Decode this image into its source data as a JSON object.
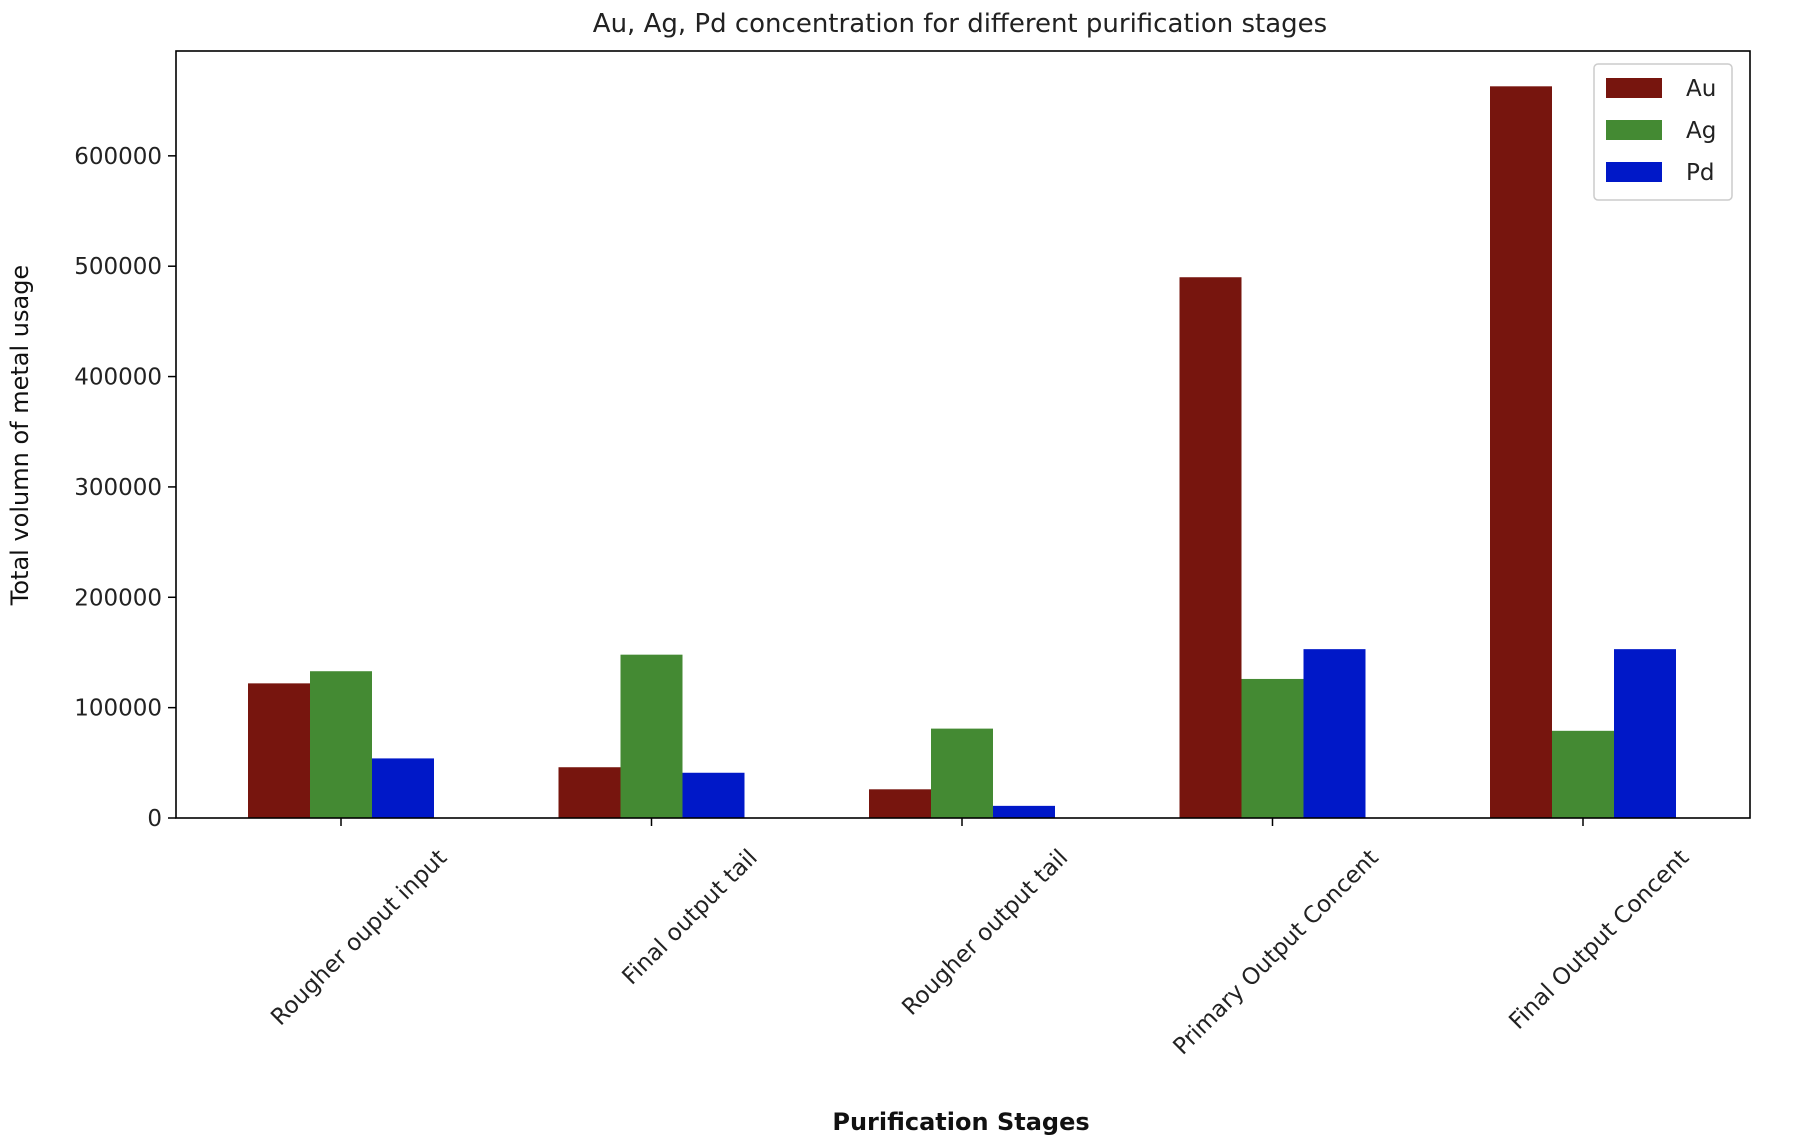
{
  "chart_data": {
    "type": "bar",
    "title": "Au, Ag, Pd concentration for different purification stages",
    "xlabel": "Purification Stages",
    "ylabel": "Total volumn of metal usage",
    "categories": [
      "Rougher ouput input",
      "Final output tail",
      "Rougher output tail",
      "Primary Output Concent",
      "Final Output Concent"
    ],
    "series": [
      {
        "name": "Au",
        "color": "#77150e",
        "values": [
          122000,
          46000,
          26000,
          490000,
          663000
        ]
      },
      {
        "name": "Ag",
        "color": "#448a33",
        "values": [
          133000,
          148000,
          81000,
          126000,
          79000
        ]
      },
      {
        "name": "Pd",
        "color": "#0018c8",
        "values": [
          54000,
          41000,
          11000,
          153000,
          153000
        ]
      }
    ],
    "ylim": [
      0,
      695000
    ],
    "yticks": [
      0,
      100000,
      200000,
      300000,
      400000,
      500000,
      600000
    ],
    "ytick_labels": [
      "0",
      "100000",
      "200000",
      "300000",
      "400000",
      "500000",
      "600000"
    ],
    "legend_position": "top-right",
    "grid": false
  }
}
